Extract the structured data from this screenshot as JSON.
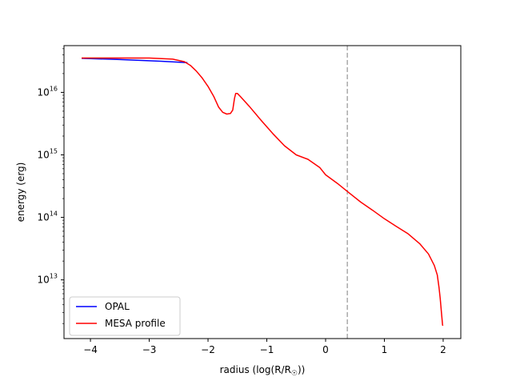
{
  "chart_data": {
    "type": "line",
    "title": "",
    "xlabel": "radius (log(R/R",
    "xlabel_symbol": "☉",
    "xlabel_close": "))",
    "ylabel": "energy (erg)",
    "xscale": "linear",
    "yscale": "log",
    "xlim": [
      -4.45,
      2.3
    ],
    "ylim": [
      1150000000000.0,
      5.6e+16
    ],
    "xticks": [
      -4,
      -3,
      -2,
      -1,
      0,
      1,
      2
    ],
    "xtick_labels": [
      "−4",
      "−3",
      "−2",
      "−1",
      "0",
      "1",
      "2"
    ],
    "yticks": [
      {
        "value": 10000000000000.0,
        "base": "10",
        "exp": "13"
      },
      {
        "value": 100000000000000.0,
        "base": "10",
        "exp": "14"
      },
      {
        "value": 1000000000000000.0,
        "base": "10",
        "exp": "15"
      },
      {
        "value": 1e+16,
        "base": "10",
        "exp": "16"
      }
    ],
    "grid": false,
    "legend_position": "lower-left",
    "vline": {
      "x": 0.37,
      "color": "#aaaaaa",
      "style": "dashed"
    },
    "series": [
      {
        "name": "OPAL",
        "color": "#0000ff",
        "x": [
          -4.15,
          -3.5,
          -2.8,
          -2.35
        ],
        "y": [
          3.5e+16,
          3.35e+16,
          3.15e+16,
          3e+16
        ]
      },
      {
        "name": "MESA profile",
        "color": "#ff0000",
        "x": [
          -4.15,
          -3.5,
          -3.0,
          -2.6,
          -2.4,
          -2.3,
          -2.2,
          -2.1,
          -2.0,
          -1.9,
          -1.82,
          -1.75,
          -1.68,
          -1.62,
          -1.58,
          -1.55,
          -1.53,
          -1.5,
          -1.45,
          -1.3,
          -1.1,
          -0.9,
          -0.7,
          -0.5,
          -0.3,
          -0.1,
          0.0,
          0.2,
          0.37,
          0.6,
          0.8,
          1.0,
          1.2,
          1.4,
          1.6,
          1.75,
          1.85,
          1.9,
          1.93,
          1.95,
          1.97,
          1.98,
          1.99,
          1.995
        ],
        "y": [
          3.55e+16,
          3.55e+16,
          3.55e+16,
          3.4e+16,
          3.1e+16,
          2.7e+16,
          2.2e+16,
          1.7e+16,
          1.25e+16,
          8500000000000000.0,
          5800000000000000.0,
          4800000000000000.0,
          4500000000000000.0,
          4600000000000000.0,
          5200000000000000.0,
          8000000000000000.0,
          9600000000000000.0,
          9600000000000000.0,
          8600000000000000.0,
          6000000000000000.0,
          3600000000000000.0,
          2200000000000000.0,
          1400000000000000.0,
          1000000000000000.0,
          850000000000000.0,
          630000000000000.0,
          480000000000000.0,
          350000000000000.0,
          260000000000000.0,
          175000000000000.0,
          130000000000000.0,
          95000000000000.0,
          72000000000000.0,
          55000000000000.0,
          38000000000000.0,
          26000000000000.0,
          17000000000000.0,
          12000000000000.0,
          7500000000000.0,
          5000000000000.0,
          3000000000000.0,
          2400000000000.0,
          1900000000000.0,
          1850000000000.0
        ]
      }
    ]
  }
}
